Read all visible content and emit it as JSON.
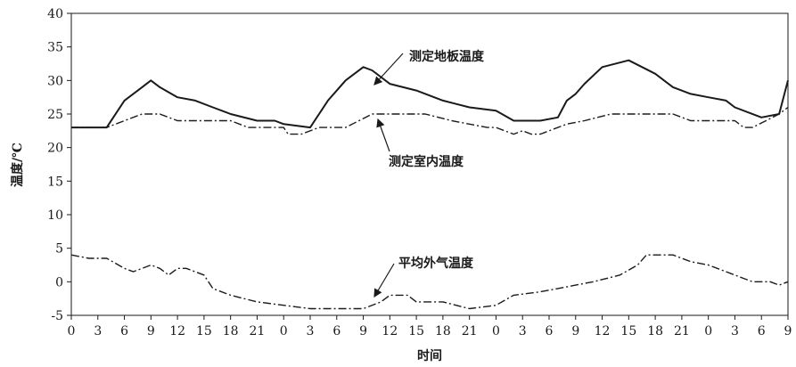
{
  "chart_data": {
    "type": "line",
    "title": "",
    "xlabel": "时间",
    "ylabel": "温度/℃",
    "ylim": [
      -5,
      40
    ],
    "yticks": [
      "-5",
      "0",
      "5",
      "10",
      "15",
      "20",
      "25",
      "30",
      "35",
      "40"
    ],
    "xticks": [
      "0",
      "3",
      "6",
      "9",
      "12",
      "15",
      "18",
      "21",
      "0",
      "3",
      "6",
      "9",
      "12",
      "15",
      "18",
      "21",
      "0",
      "3",
      "6",
      "9",
      "12",
      "15",
      "18",
      "21",
      "0",
      "3",
      "6",
      "9"
    ],
    "x_unit": "hours elapsed (3 h per tick, 0–81)",
    "grid": false,
    "legend": "none (series labeled by inline annotations with arrows)",
    "series": [
      {
        "name": "测定地板温度",
        "style": "solid",
        "color": "#1a1a1a",
        "x": [
          0,
          4,
          6,
          8,
          9,
          10,
          12,
          14,
          16,
          18,
          21,
          23,
          24,
          27,
          29,
          31,
          32,
          33,
          34,
          36,
          39,
          42,
          45,
          48,
          50,
          53,
          55,
          56,
          57,
          58,
          60,
          63,
          66,
          68,
          70,
          72,
          74,
          75,
          78,
          80,
          81
        ],
        "y": [
          23,
          23,
          27,
          29,
          30,
          29,
          27.5,
          27,
          26,
          25,
          24,
          24,
          23.5,
          23,
          27,
          30,
          31,
          32,
          31.5,
          29.5,
          28.5,
          27,
          26,
          25.5,
          24,
          24,
          24.5,
          27,
          28,
          29.5,
          32,
          33,
          31,
          29,
          28,
          27.5,
          27,
          26,
          24.5,
          25,
          30
        ]
      },
      {
        "name": "测定室内温度",
        "style": "dash-dot",
        "color": "#1a1a1a",
        "x": [
          0,
          4,
          6,
          8,
          9,
          10,
          12,
          15,
          18,
          20,
          22,
          24,
          24.5,
          26,
          28,
          31,
          34,
          37,
          40,
          43,
          47,
          48,
          50,
          51,
          52,
          53,
          56,
          58,
          61,
          64,
          68,
          70,
          72,
          74,
          75,
          76,
          77,
          80,
          81
        ],
        "y": [
          23,
          23,
          24,
          25,
          25,
          25,
          24,
          24,
          24,
          23,
          23,
          23,
          22,
          22,
          23,
          23,
          25,
          25,
          25,
          24,
          23,
          23,
          22,
          22.5,
          22,
          22,
          23.5,
          24,
          25,
          25,
          25,
          24,
          24,
          24,
          24,
          23,
          23,
          25,
          26
        ]
      },
      {
        "name": "平均外气温度",
        "style": "dash-dot",
        "color": "#1a1a1a",
        "x": [
          0,
          2,
          4,
          6,
          7,
          8,
          9,
          10,
          11,
          12,
          13,
          15,
          16,
          18,
          21,
          24,
          27,
          30,
          33,
          35,
          36,
          38,
          39,
          42,
          45,
          48,
          50,
          53,
          55,
          57,
          59,
          62,
          64,
          65,
          66,
          68,
          70,
          72,
          74,
          76,
          77,
          79,
          80,
          81
        ],
        "y": [
          4,
          3.5,
          3.5,
          2,
          1.5,
          2,
          2.5,
          2,
          1,
          2,
          2,
          1,
          -1,
          -2,
          -3,
          -3.5,
          -4,
          -4,
          -4,
          -3,
          -2,
          -2,
          -3,
          -3,
          -4,
          -3.5,
          -2,
          -1.5,
          -1,
          -0.5,
          0,
          1,
          2.5,
          4,
          4,
          4,
          3,
          2.5,
          1.5,
          0.5,
          0,
          0,
          -0.5,
          0
        ]
      }
    ],
    "annotations": [
      {
        "text": "测定地板温度",
        "points_to_series": "测定地板温度"
      },
      {
        "text": "测定室内温度",
        "points_to_series": "测定室内温度"
      },
      {
        "text": "平均外气温度",
        "points_to_series": "平均外气温度"
      }
    ]
  }
}
